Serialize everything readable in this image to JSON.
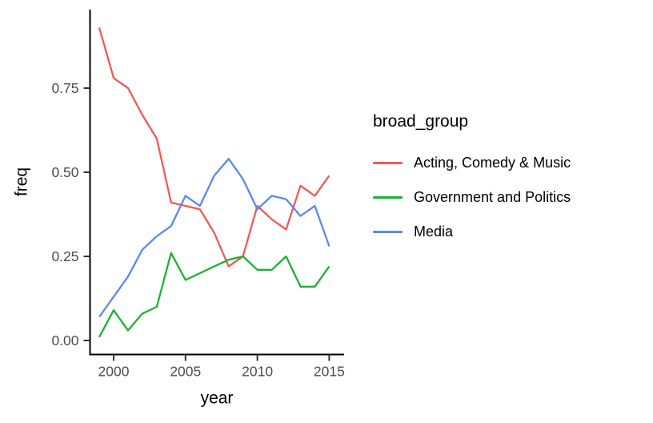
{
  "chart_data": {
    "type": "line",
    "title": "",
    "xlabel": "year",
    "ylabel": "freq",
    "legend_title": "broad_group",
    "legend_position": "right",
    "grid": false,
    "x": [
      1999,
      2000,
      2001,
      2002,
      2003,
      2004,
      2005,
      2006,
      2007,
      2008,
      2009,
      2010,
      2011,
      2012,
      2013,
      2014,
      2015
    ],
    "series": [
      {
        "name": "Acting, Comedy & Music",
        "color": "#F05A55",
        "values": [
          0.93,
          0.78,
          0.75,
          0.67,
          0.6,
          0.41,
          0.4,
          0.39,
          0.32,
          0.22,
          0.25,
          0.4,
          0.36,
          0.33,
          0.46,
          0.43,
          0.49
        ]
      },
      {
        "name": "Government and Politics",
        "color": "#1DB233",
        "values": [
          0.01,
          0.09,
          0.03,
          0.08,
          0.1,
          0.26,
          0.18,
          0.2,
          0.22,
          0.24,
          0.25,
          0.21,
          0.21,
          0.25,
          0.16,
          0.16,
          0.22
        ]
      },
      {
        "name": "Media",
        "color": "#5C88F0",
        "values": [
          0.07,
          0.13,
          0.19,
          0.27,
          0.31,
          0.34,
          0.43,
          0.4,
          0.49,
          0.54,
          0.48,
          0.39,
          0.43,
          0.42,
          0.37,
          0.4,
          0.28
        ]
      }
    ],
    "x_ticks": [
      2000,
      2005,
      2010,
      2015
    ],
    "x_tick_labels": [
      "2000",
      "2005",
      "2010",
      "2015"
    ],
    "y_ticks": [
      0.0,
      0.25,
      0.5,
      0.75
    ],
    "y_tick_labels": [
      "0.00",
      "0.25",
      "0.50",
      "0.75"
    ],
    "xlim": [
      1998.4,
      2016.1
    ],
    "ylim": [
      0.0,
      0.983
    ],
    "axis_color": "#000000",
    "tick_color": "#333333",
    "tick_label_color": "#4D4D4D"
  }
}
